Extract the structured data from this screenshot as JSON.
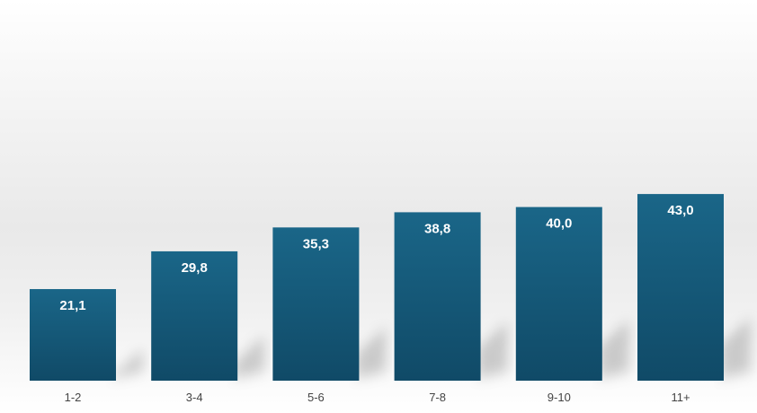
{
  "chart_data": {
    "type": "bar",
    "categories": [
      "1-2",
      "3-4",
      "5-6",
      "7-8",
      "9-10",
      "11+"
    ],
    "values": [
      21.1,
      29.8,
      35.3,
      38.8,
      40.0,
      43.0
    ],
    "data_labels": [
      "21,1",
      "29,8",
      "35,3",
      "38,8",
      "40,0",
      "43,0"
    ],
    "title": "",
    "xlabel": "",
    "ylabel": "",
    "ylim": [
      0,
      45
    ],
    "grid": false,
    "legend": "none",
    "colors": {
      "bar_top": "#1a6688",
      "bar_bottom": "#104a67"
    }
  }
}
